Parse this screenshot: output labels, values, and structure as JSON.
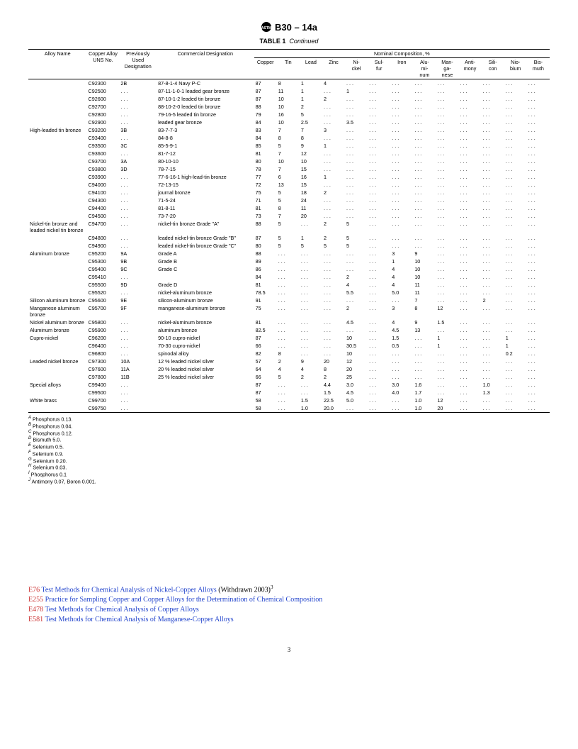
{
  "header": {
    "standard": "B30 – 14a"
  },
  "table": {
    "caption_label": "TABLE 1",
    "caption_cont": "Continued",
    "group_header": "Nominal Composition, %",
    "columns": {
      "alloy": "Alloy Name",
      "uns": "Copper Alloy UNS No.",
      "prev": "Previously Used Designation",
      "comm": "Commercial Designation",
      "comp": [
        "Copper",
        "Tin",
        "Lead",
        "Zinc",
        "Ni-\nckel",
        "Sul-\nfur",
        "Iron",
        "Alu-\nmi-\nnum",
        "Man-\nga-\nnese",
        "Anti-\nmony",
        "Sili-\ncon",
        "Nio-\nbium",
        "Bis-\nmuth"
      ]
    },
    "rows": [
      {
        "alloy": "",
        "uns": "C92300",
        "prev": "2B",
        "comm": "87-8-1-4 Navy P-C",
        "c": [
          "87",
          "8",
          "1",
          "4",
          "...",
          "...",
          "...",
          "...",
          "...",
          "...",
          "...",
          "...",
          "..."
        ]
      },
      {
        "alloy": "",
        "uns": "C92500",
        "prev": "...",
        "comm": "87-11-1-0-1 leaded gear bronze",
        "c": [
          "87",
          "11",
          "1",
          "...",
          "1",
          "...",
          "...",
          "...",
          "...",
          "...",
          "...",
          "...",
          "..."
        ]
      },
      {
        "alloy": "",
        "uns": "C92600",
        "prev": "...",
        "comm": "87-10-1-2 leaded tin bronze",
        "c": [
          "87",
          "10",
          "1",
          "2",
          "...",
          "...",
          "...",
          "...",
          "...",
          "...",
          "...",
          "...",
          "..."
        ]
      },
      {
        "alloy": "",
        "uns": "C92700",
        "prev": "...",
        "comm": "88-10-2-0 leaded tin bronze",
        "c": [
          "88",
          "10",
          "2",
          "...",
          "...",
          "...",
          "...",
          "...",
          "...",
          "...",
          "...",
          "...",
          "..."
        ]
      },
      {
        "alloy": "",
        "uns": "C92800",
        "prev": "...",
        "comm": "79-16-5 leaded tin bronze",
        "c": [
          "79",
          "16",
          "5",
          "...",
          "...",
          "...",
          "...",
          "...",
          "...",
          "...",
          "...",
          "...",
          "..."
        ]
      },
      {
        "alloy": "",
        "uns": "C92900",
        "prev": "...",
        "comm": "leaded gear bronze",
        "c": [
          "84",
          "10",
          "2.5",
          "...",
          "3.5",
          "...",
          "...",
          "...",
          "...",
          "...",
          "...",
          "...",
          "..."
        ]
      },
      {
        "alloy": "High-leaded tin bronze",
        "uns": "C93200",
        "prev": "3B",
        "comm": "83-7-7-3",
        "c": [
          "83",
          "7",
          "7",
          "3",
          "...",
          "...",
          "...",
          "...",
          "...",
          "...",
          "...",
          "...",
          "..."
        ]
      },
      {
        "alloy": "",
        "uns": "C93400",
        "prev": "...",
        "comm": "84-8-8",
        "c": [
          "84",
          "8",
          "8",
          "...",
          "...",
          "...",
          "...",
          "...",
          "...",
          "...",
          "...",
          "...",
          "..."
        ]
      },
      {
        "alloy": "",
        "uns": "C93500",
        "prev": "3C",
        "comm": "85-5-9-1",
        "c": [
          "85",
          "5",
          "9",
          "1",
          "...",
          "...",
          "...",
          "...",
          "...",
          "...",
          "...",
          "...",
          "..."
        ]
      },
      {
        "alloy": "",
        "uns": "C93600",
        "prev": "...",
        "comm": "81-7-12",
        "c": [
          "81",
          "7",
          "12",
          "...",
          "...",
          "...",
          "...",
          "...",
          "...",
          "...",
          "...",
          "...",
          "..."
        ]
      },
      {
        "alloy": "",
        "uns": "C93700",
        "prev": "3A",
        "comm": "80-10-10",
        "c": [
          "80",
          "10",
          "10",
          "...",
          "...",
          "...",
          "...",
          "...",
          "...",
          "...",
          "...",
          "...",
          "..."
        ]
      },
      {
        "alloy": "",
        "uns": "C93800",
        "prev": "3D",
        "comm": "78-7-15",
        "c": [
          "78",
          "7",
          "15",
          "...",
          "...",
          "...",
          "...",
          "...",
          "...",
          "...",
          "...",
          "...",
          "..."
        ]
      },
      {
        "alloy": "",
        "uns": "C93900",
        "prev": "...",
        "comm": "77-6-16-1 high-lead-tin bronze",
        "c": [
          "77",
          "6",
          "16",
          "1",
          "...",
          "...",
          "...",
          "...",
          "...",
          "...",
          "...",
          "...",
          "..."
        ]
      },
      {
        "alloy": "",
        "uns": "C94000",
        "prev": "...",
        "comm": "72-13-15",
        "c": [
          "72",
          "13",
          "15",
          "...",
          "...",
          "...",
          "...",
          "...",
          "...",
          "...",
          "...",
          "...",
          "..."
        ]
      },
      {
        "alloy": "",
        "uns": "C94100",
        "prev": "...",
        "comm": "journal bronze",
        "c": [
          "75",
          "5",
          "18",
          "2",
          "...",
          "...",
          "...",
          "...",
          "...",
          "...",
          "...",
          "...",
          "..."
        ]
      },
      {
        "alloy": "",
        "uns": "C94300",
        "prev": "...",
        "comm": "71-5-24",
        "c": [
          "71",
          "5",
          "24",
          "...",
          "...",
          "...",
          "...",
          "...",
          "...",
          "...",
          "...",
          "...",
          "..."
        ]
      },
      {
        "alloy": "",
        "uns": "C94400",
        "prev": "...",
        "comm": "81-8-11",
        "c": [
          "81",
          "8",
          "11",
          "...",
          "...",
          "...",
          "...",
          "...",
          "...",
          "...",
          "...",
          "...",
          "..."
        ]
      },
      {
        "alloy": "",
        "uns": "C94500",
        "prev": "...",
        "comm": "73-7-20",
        "c": [
          "73",
          "7",
          "20",
          "...",
          "...",
          "...",
          "...",
          "...",
          "...",
          "...",
          "...",
          "...",
          "..."
        ]
      },
      {
        "alloy": "Nickel-tin bronze and leaded nickel tin bronze",
        "uns": "C94700",
        "prev": "...",
        "comm": "nickel-tin bronze Grade \"A\"",
        "c": [
          "88",
          "5",
          "...",
          "2",
          "5",
          "...",
          "...",
          "...",
          "...",
          "...",
          "...",
          "...",
          "..."
        ]
      },
      {
        "alloy": "",
        "uns": "C94800",
        "prev": "...",
        "comm": "leaded nickel-tin bronze Grade \"B\"",
        "c": [
          "87",
          "5",
          "1",
          "2",
          "5",
          "...",
          "...",
          "...",
          "...",
          "...",
          "...",
          "...",
          "..."
        ]
      },
      {
        "alloy": "",
        "uns": "C94900",
        "prev": "...",
        "comm": "leaded nickel-tin bronze Grade \"C\"",
        "c": [
          "80",
          "5",
          "5",
          "5",
          "5",
          "...",
          "...",
          "...",
          "...",
          "...",
          "...",
          "...",
          "..."
        ]
      },
      {
        "alloy": "Aluminum bronze",
        "uns": "C95200",
        "prev": "9A",
        "comm": "Grade A",
        "c": [
          "88",
          "...",
          "...",
          "...",
          "...",
          "...",
          "3",
          "9",
          "...",
          "...",
          "...",
          "...",
          "..."
        ]
      },
      {
        "alloy": "",
        "uns": "C95300",
        "prev": "9B",
        "comm": "Grade B",
        "c": [
          "89",
          "...",
          "...",
          "...",
          "...",
          "...",
          "1",
          "10",
          "...",
          "...",
          "...",
          "...",
          "..."
        ]
      },
      {
        "alloy": "",
        "uns": "C95400",
        "prev": "9C",
        "comm": "Grade C",
        "c": [
          "86",
          "...",
          "...",
          "...",
          "...",
          "...",
          "4",
          "10",
          "...",
          "...",
          "...",
          "...",
          "..."
        ]
      },
      {
        "alloy": "",
        "uns": "C95410",
        "prev": "...",
        "comm": "",
        "c": [
          "84",
          "...",
          "...",
          "...",
          "2",
          "...",
          "4",
          "10",
          "...",
          "...",
          "...",
          "...",
          "..."
        ]
      },
      {
        "alloy": "",
        "uns": "C95500",
        "prev": "9D",
        "comm": "Grade D",
        "c": [
          "81",
          "...",
          "...",
          "...",
          "4",
          "...",
          "4",
          "11",
          "...",
          "...",
          "...",
          "...",
          "..."
        ]
      },
      {
        "alloy": "",
        "uns": "C95520",
        "prev": "...",
        "comm": "nickel-aluminum bronze",
        "c": [
          "78.5",
          "...",
          "...",
          "...",
          "5.5",
          "...",
          "5.0",
          "11",
          "...",
          "...",
          "...",
          "...",
          "..."
        ]
      },
      {
        "alloy": "Silicon aluminum bronze",
        "uns": "C95600",
        "prev": "9E",
        "comm": "silicon-aluminum bronze",
        "c": [
          "91",
          "...",
          "...",
          "...",
          "...",
          "...",
          "...",
          "7",
          "...",
          "...",
          "2",
          "...",
          "..."
        ]
      },
      {
        "alloy": "Manganese aluminum bronze",
        "uns": "C95700",
        "prev": "9F",
        "comm": "manganese-aluminum bronze",
        "c": [
          "75",
          "...",
          "...",
          "...",
          "2",
          "...",
          "3",
          "8",
          "12",
          "...",
          "...",
          "...",
          "..."
        ]
      },
      {
        "alloy": "Nickel aluminum bronze",
        "uns": "C95800",
        "prev": "...",
        "comm": "nickel-aluminum bronze",
        "c": [
          "81",
          "...",
          "...",
          "...",
          "4.5",
          "...",
          "4",
          "9",
          "1.5",
          "...",
          "...",
          "...",
          "..."
        ]
      },
      {
        "alloy": "Aluminum bronze",
        "uns": "C95900",
        "prev": "...",
        "comm": "aluminum bronze",
        "c": [
          "82.5",
          "...",
          "...",
          "...",
          "...",
          "...",
          "4.5",
          "13",
          "...",
          "...",
          "...",
          "...",
          "..."
        ]
      },
      {
        "alloy": "Cupro-nickel",
        "uns": "C96200",
        "prev": "...",
        "comm": "90-10 cupro-nickel",
        "c": [
          "87",
          "...",
          "...",
          "...",
          "10",
          "...",
          "1.5",
          "...",
          "1",
          "...",
          "...",
          "1",
          "..."
        ]
      },
      {
        "alloy": "",
        "uns": "C96400",
        "prev": "...",
        "comm": "70-30 cupro-nickel",
        "c": [
          "66",
          "...",
          "...",
          "...",
          "30.5",
          "...",
          "0.5",
          "...",
          "1",
          "...",
          "...",
          "1",
          "..."
        ]
      },
      {
        "alloy": "",
        "uns": "C96800",
        "prev": "...",
        "comm": "spinodal alloy",
        "c": [
          "82",
          "8",
          "...",
          "...",
          "10",
          "...",
          "...",
          "...",
          "...",
          "...",
          "...",
          "0.2",
          "..."
        ]
      },
      {
        "alloy": "Leaded nickel bronze",
        "uns": "C97300",
        "prev": "10A",
        "comm": "12 % leaded nickel silver",
        "c": [
          "57",
          "2",
          "9",
          "20",
          "12",
          "...",
          "...",
          "...",
          "...",
          "...",
          "...",
          "...",
          "..."
        ]
      },
      {
        "alloy": "",
        "uns": "C97600",
        "prev": "11A",
        "comm": "20 % leaded nickel silver",
        "c": [
          "64",
          "4",
          "4",
          "8",
          "20",
          "...",
          "...",
          "...",
          "...",
          "...",
          "...",
          "...",
          "..."
        ]
      },
      {
        "alloy": "",
        "uns": "C97800",
        "prev": "11B",
        "comm": "25 % leaded nickel silver",
        "c": [
          "66",
          "5",
          "2",
          "2",
          "25",
          "...",
          "...",
          "...",
          "...",
          "...",
          "...",
          "...",
          "..."
        ]
      },
      {
        "alloy": "Special alloys",
        "uns": "C99400",
        "prev": "...",
        "comm": "",
        "c": [
          "87",
          "...",
          "...",
          "4.4",
          "3.0",
          "...",
          "3.0",
          "1.6",
          "...",
          "...",
          "1.0",
          "...",
          "..."
        ]
      },
      {
        "alloy": "",
        "uns": "C99500",
        "prev": "...",
        "comm": "",
        "c": [
          "87",
          "...",
          "...",
          "1.5",
          "4.5",
          "...",
          "4.0",
          "1.7",
          "...",
          "...",
          "1.3",
          "...",
          "..."
        ]
      },
      {
        "alloy": "White brass",
        "uns": "C99700",
        "prev": "...",
        "comm": "",
        "c": [
          "58",
          "...",
          "1.5",
          "22.5",
          "5.0",
          "...",
          "...",
          "1.0",
          "12",
          "...",
          "...",
          "...",
          "..."
        ]
      },
      {
        "alloy": "",
        "uns": "C99750",
        "prev": "...",
        "comm": "",
        "c": [
          "58",
          "...",
          "1.0",
          "20.0",
          "...",
          "...",
          "...",
          "1.0",
          "20",
          "...",
          "...",
          "...",
          "..."
        ]
      }
    ]
  },
  "footnotes": [
    {
      "sup": "A",
      "text": "Phosphorus 0.13."
    },
    {
      "sup": "B",
      "text": "Phosphorus 0.04."
    },
    {
      "sup": "C",
      "text": "Phosphorus 0.12."
    },
    {
      "sup": "D",
      "text": "Bismuth 5.0."
    },
    {
      "sup": "E",
      "text": "Selenium 0.5."
    },
    {
      "sup": "F",
      "text": "Selenium 0.9."
    },
    {
      "sup": "G",
      "text": "Selenium 0.20."
    },
    {
      "sup": "H",
      "text": "Selenium 0.03."
    },
    {
      "sup": "I",
      "text": "Phosphorus 0.1"
    },
    {
      "sup": "J",
      "text": "Antimony 0.07, Boron 0.001."
    }
  ],
  "refs": [
    {
      "code": "E76",
      "title": "Test Methods for Chemical Analysis of Nickel-Copper Alloys",
      "suffix": " (Withdrawn 2003)",
      "sup": "3"
    },
    {
      "code": "E255",
      "title": "Practice for Sampling Copper and Copper Alloys for the Determination of Chemical Composition",
      "suffix": "",
      "sup": ""
    },
    {
      "code": "E478",
      "title": "Test Methods for Chemical Analysis of Copper Alloys",
      "suffix": "",
      "sup": ""
    },
    {
      "code": "E581",
      "title": "Test Methods for Chemical Analysis of Manganese-Copper Alloys",
      "suffix": "",
      "sup": ""
    }
  ],
  "page": "3"
}
